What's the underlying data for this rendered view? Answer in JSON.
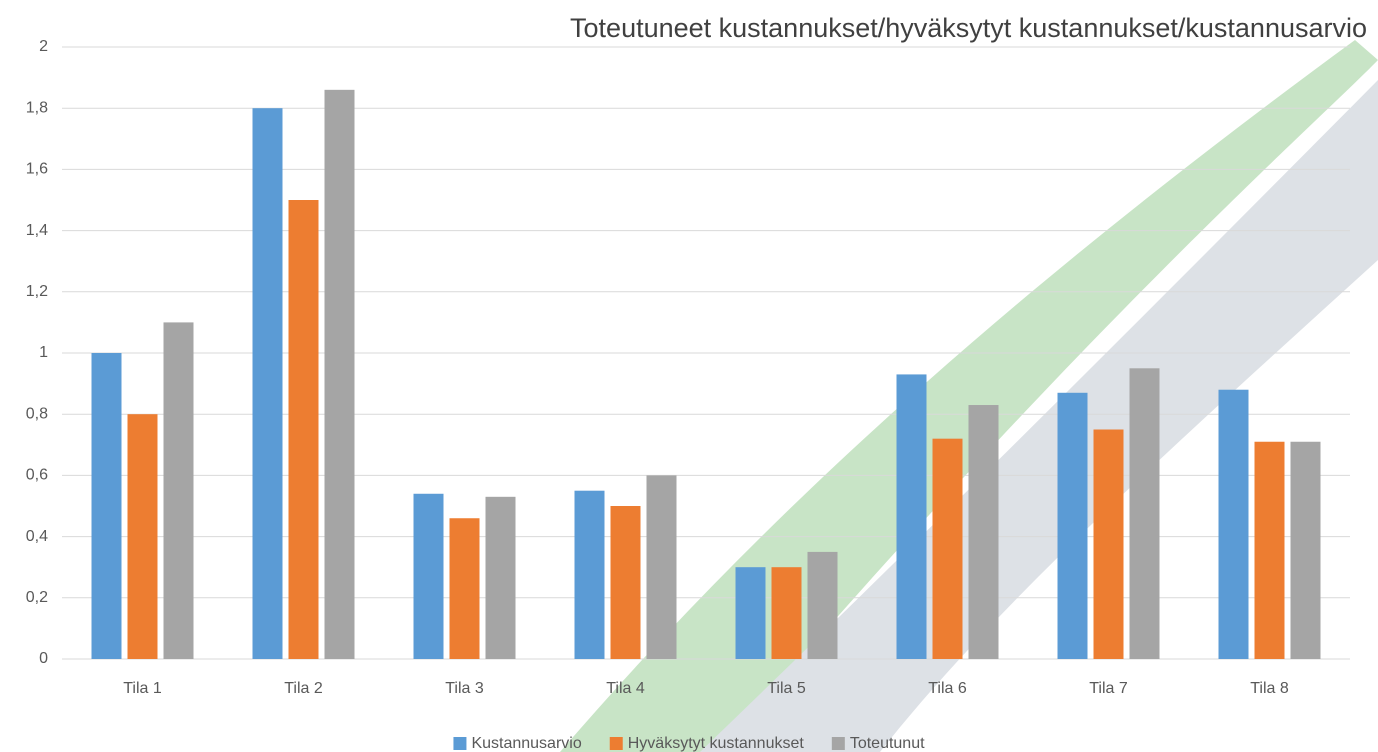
{
  "chart_data": {
    "type": "bar",
    "title": "Toteutuneet kustannukset/hyväksytyt kustannukset/kustannusarvio",
    "categories": [
      "Tila 1",
      "Tila 2",
      "Tila 3",
      "Tila 4",
      "Tila 5",
      "Tila 6",
      "Tila 7",
      "Tila 8"
    ],
    "series": [
      {
        "name": "Kustannusarvio",
        "color": "#5b9bd5",
        "values": [
          1.0,
          1.8,
          0.54,
          0.55,
          0.3,
          0.93,
          0.87,
          0.88
        ]
      },
      {
        "name": "Hyväksytyt kustannukset",
        "color": "#ed7d31",
        "values": [
          0.8,
          1.5,
          0.46,
          0.5,
          0.3,
          0.72,
          0.75,
          0.71
        ]
      },
      {
        "name": "Toteutunut",
        "color": "#a5a5a5",
        "values": [
          1.1,
          1.86,
          0.53,
          0.6,
          0.35,
          0.83,
          0.95,
          0.71
        ]
      }
    ],
    "ylim": [
      0,
      2
    ],
    "yticks": [
      0,
      {
        "value": 0.2,
        "label": "0,2"
      },
      {
        "value": 0.4,
        "label": "0,4"
      },
      {
        "value": 0.6,
        "label": "0,6"
      },
      {
        "value": 0.8,
        "label": "0,8"
      },
      1,
      {
        "value": 1.2,
        "label": "1,2"
      },
      {
        "value": 1.4,
        "label": "1,4"
      },
      {
        "value": 1.6,
        "label": "1,6"
      },
      {
        "value": 1.8,
        "label": "1,8"
      },
      2
    ],
    "grid": true,
    "legend": "bottom"
  }
}
